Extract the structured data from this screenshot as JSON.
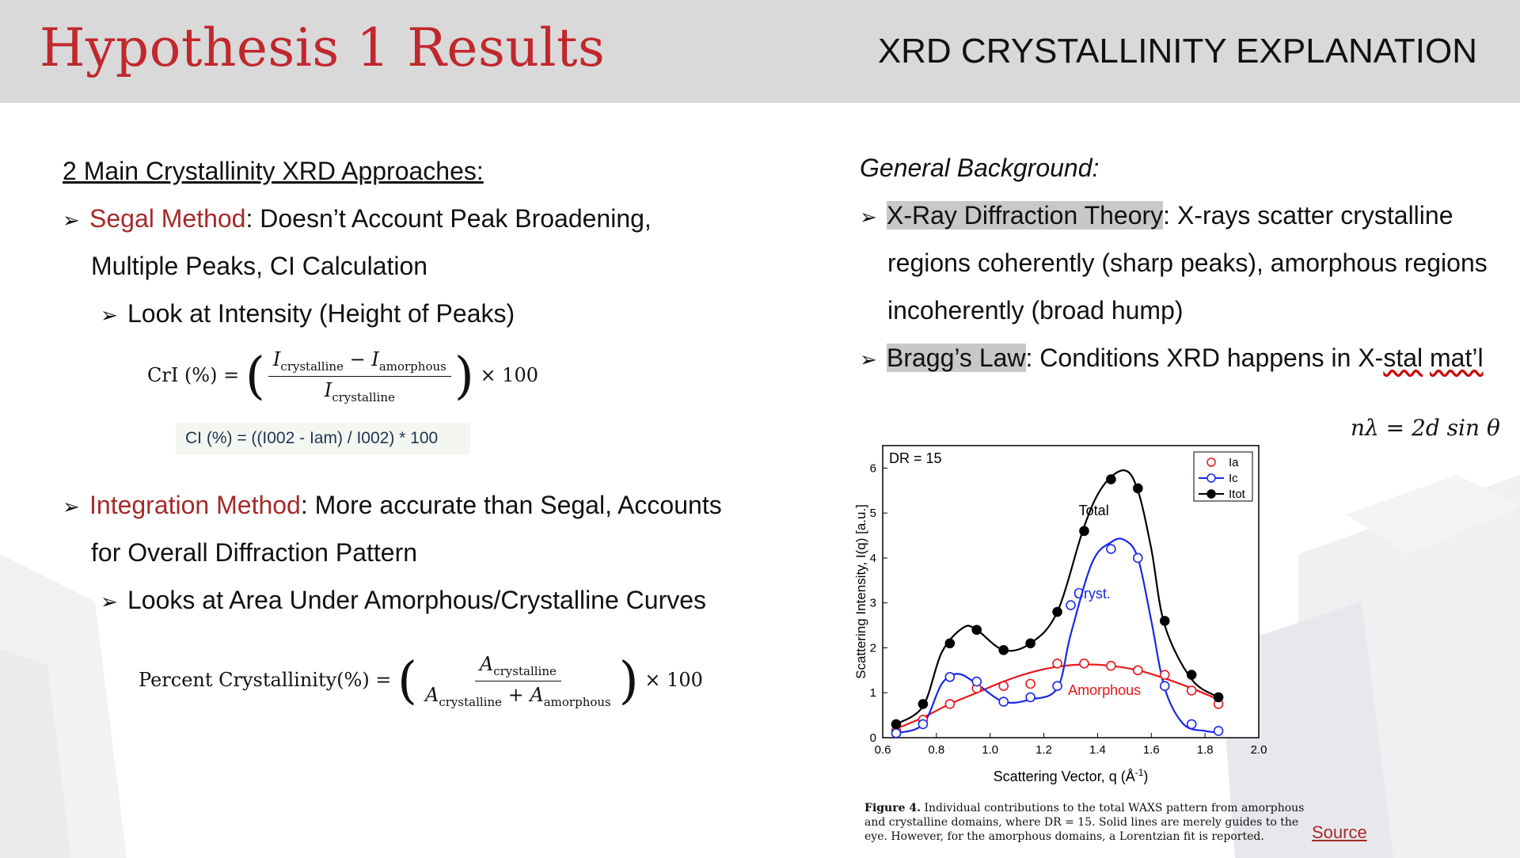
{
  "header": {
    "title": "Hypothesis 1 Results",
    "subtitle": "XRD CRYSTALLINITY EXPLANATION"
  },
  "left": {
    "heading": "2 Main Crystallinity XRD Approaches:",
    "segal": {
      "name": "Segal Method",
      "desc_line1": ": Doesn’t Account Peak Broadening,",
      "desc_line2": "Multiple Peaks, CI Calculation",
      "sub": "Look at Intensity (Height of Peaks)",
      "formula": {
        "lhs": "CrI (%) = ",
        "num_i": "I",
        "num_s1": "crystalline",
        "minus": " − ",
        "num_i2": "I",
        "num_s2": "amorphous",
        "den_i": "I",
        "den_s": "crystalline",
        "times": " × 100"
      },
      "ci_text": "CI (%) = ((I002 - Iam) / I002) * 100"
    },
    "integration": {
      "name": "Integration Method",
      "desc_line1": ": More accurate than Segal, Accounts",
      "desc_line2": "for Overall Diffraction Pattern",
      "sub": "Looks at Area Under Amorphous/Crystalline Curves",
      "formula": {
        "lhs": "Percent Crystallinity(%) = ",
        "num_i": "A",
        "num_s": "crystalline",
        "den_i1": "A",
        "den_s1": "crystalline",
        "plus": " + ",
        "den_i2": "A",
        "den_s2": "amorphous",
        "times": " × 100"
      }
    }
  },
  "right": {
    "heading": "General Background:",
    "xray": {
      "name": "X-Ray Diffraction Theory",
      "line1": ": X-rays scatter crystalline",
      "line2": "regions coherently (sharp peaks), amorphous regions",
      "line3": "incoherently (broad hump)"
    },
    "bragg": {
      "name": "Bragg’s Law",
      "line1a": ": Conditions XRD happens in X-",
      "line1b": "stal",
      "line1c": " ",
      "line1d": "mat’l",
      "equation": "nλ = 2d sin θ"
    },
    "caption_bold": "Figure 4.",
    "caption_text": " Individual contributions to the total WAXS pattern from amorphous and crystalline domains, where DR = 15. Solid lines are merely guides to the eye. However, for the amorphous domains, a Lorentzian fit is reported.",
    "source_link": "Source"
  },
  "chart_data": {
    "type": "line",
    "annotation_dr": "DR = 15",
    "xlabel": "Scattering Vector, q (Å",
    "xlabel_sup": "-1",
    "xlabel_end": ")",
    "ylabel": "Scattering Intensity, I(q) [a.u.]",
    "xlim": [
      0.6,
      2.0
    ],
    "ylim": [
      0,
      6.5
    ],
    "xticks": [
      "0.6",
      "0.8",
      "1.0",
      "1.2",
      "1.4",
      "1.6",
      "1.8",
      "2.0"
    ],
    "yticks": [
      "0",
      "1",
      "2",
      "3",
      "4",
      "5",
      "6"
    ],
    "legend": [
      "Ia",
      "Ic",
      "Itot"
    ],
    "labels": {
      "total": "Total",
      "cryst": "Cryst.",
      "amorph": "Amorphous"
    },
    "colors": {
      "Ia": "#e8161b",
      "Ic": "#1a28e8",
      "Itot": "#000000"
    },
    "series": [
      {
        "name": "Ia",
        "x": [
          0.65,
          0.75,
          0.85,
          0.95,
          1.05,
          1.15,
          1.25,
          1.35,
          1.45,
          1.55,
          1.65,
          1.75,
          1.85
        ],
        "y": [
          0.15,
          0.4,
          0.75,
          1.1,
          1.15,
          1.2,
          1.65,
          1.65,
          1.6,
          1.5,
          1.4,
          1.05,
          0.75
        ]
      },
      {
        "name": "Ic",
        "x": [
          0.65,
          0.75,
          0.85,
          0.95,
          1.05,
          1.15,
          1.25,
          1.3,
          1.45,
          1.55,
          1.65,
          1.75,
          1.85
        ],
        "y": [
          0.1,
          0.3,
          1.35,
          1.25,
          0.8,
          0.9,
          1.15,
          2.95,
          4.2,
          4.0,
          1.15,
          0.3,
          0.15
        ]
      },
      {
        "name": "Itot",
        "x": [
          0.65,
          0.75,
          0.85,
          0.95,
          1.05,
          1.15,
          1.25,
          1.35,
          1.45,
          1.55,
          1.65,
          1.75,
          1.85
        ],
        "y": [
          0.3,
          0.75,
          2.1,
          2.4,
          1.95,
          2.1,
          2.8,
          4.6,
          5.75,
          5.55,
          2.6,
          1.4,
          0.9
        ]
      }
    ],
    "fits": {
      "Ia": {
        "x": [
          0.65,
          0.75,
          0.85,
          0.95,
          1.05,
          1.15,
          1.25,
          1.35,
          1.45,
          1.55,
          1.65,
          1.75,
          1.85
        ],
        "y": [
          0.2,
          0.45,
          0.75,
          1.0,
          1.25,
          1.45,
          1.58,
          1.63,
          1.6,
          1.5,
          1.32,
          1.1,
          0.85
        ]
      },
      "Ic": {
        "x": [
          0.65,
          0.75,
          0.82,
          0.88,
          0.95,
          1.05,
          1.15,
          1.25,
          1.3,
          1.38,
          1.45,
          1.5,
          1.55,
          1.6,
          1.65,
          1.72,
          1.8,
          1.85
        ],
        "y": [
          0.1,
          0.3,
          1.2,
          1.42,
          1.2,
          0.8,
          0.85,
          1.1,
          2.3,
          3.9,
          4.35,
          4.4,
          4.0,
          2.6,
          1.1,
          0.3,
          0.15,
          0.12
        ]
      },
      "Itot": {
        "x": [
          0.65,
          0.75,
          0.82,
          0.9,
          0.95,
          1.05,
          1.15,
          1.25,
          1.35,
          1.42,
          1.5,
          1.55,
          1.6,
          1.65,
          1.75,
          1.85
        ],
        "y": [
          0.3,
          0.7,
          1.9,
          2.45,
          2.4,
          1.95,
          2.1,
          2.8,
          4.7,
          5.6,
          5.95,
          5.5,
          4.2,
          2.5,
          1.3,
          0.9
        ]
      }
    }
  }
}
